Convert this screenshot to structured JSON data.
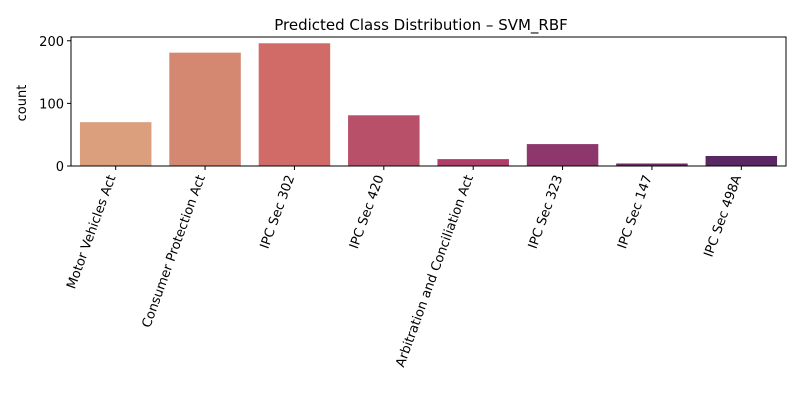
{
  "chart_data": {
    "type": "bar",
    "title": "Predicted Class Distribution – SVM_RBF",
    "xlabel": "",
    "ylabel": "count",
    "categories": [
      "Motor Vehicles Act",
      "Consumer Protection Act",
      "IPC Sec 302",
      "IPC Sec 420",
      "Arbitration and Conciliation Act",
      "IPC Sec 323",
      "IPC Sec 147",
      "IPC Sec 498A"
    ],
    "values": [
      70,
      181,
      196,
      81,
      11,
      35,
      4,
      16
    ],
    "colors": [
      "#dc9f7e",
      "#d58871",
      "#d06b68",
      "#b9506a",
      "#b03d68",
      "#8e376c",
      "#6b2b66",
      "#592762"
    ],
    "ylim": [
      0,
      206
    ],
    "yticks": [
      0,
      100,
      200
    ],
    "grid": false,
    "legend": "none"
  }
}
